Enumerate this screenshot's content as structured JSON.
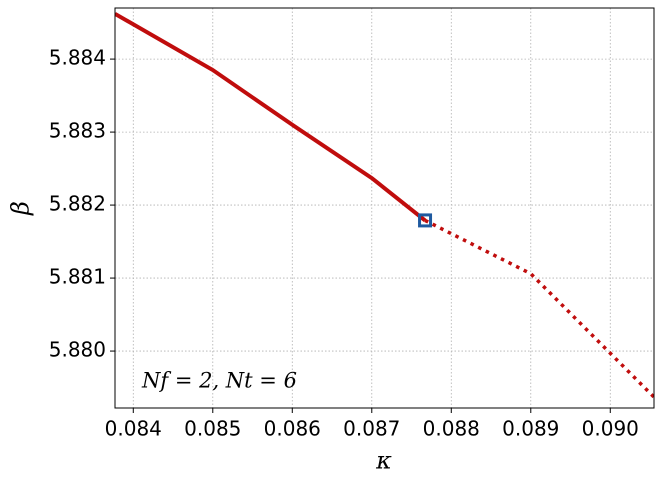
{
  "chart_data": {
    "type": "line",
    "xlabel": "κ",
    "ylabel": "β",
    "annotation": "Nf = 2, Nt = 6",
    "xlim": [
      0.08377,
      0.09055
    ],
    "ylim": [
      5.87922,
      5.8847
    ],
    "xticks": [
      0.084,
      0.085,
      0.086,
      0.087,
      0.088,
      0.089,
      {
        "value": 0.09,
        "label": "0.090"
      }
    ],
    "yticks": [
      {
        "value": 5.88,
        "label": "5.880"
      },
      5.881,
      5.882,
      5.883,
      5.884
    ],
    "grid": true,
    "series": [
      {
        "color": "#c00d0d",
        "style": "solid",
        "x": [
          0.08377,
          0.085,
          0.086,
          0.087,
          0.08767
        ],
        "values": [
          5.88462,
          5.88385,
          5.8831,
          5.88237,
          5.88179
        ]
      },
      {
        "color": "#c00d0d",
        "style": "dotted",
        "x": [
          0.08767,
          0.089,
          0.09055
        ],
        "values": [
          5.88179,
          5.88106,
          5.87937
        ]
      },
      {
        "color": "#1f5aa0",
        "style": "marker",
        "x": [
          0.08767
        ],
        "values": [
          5.88179
        ]
      }
    ]
  }
}
